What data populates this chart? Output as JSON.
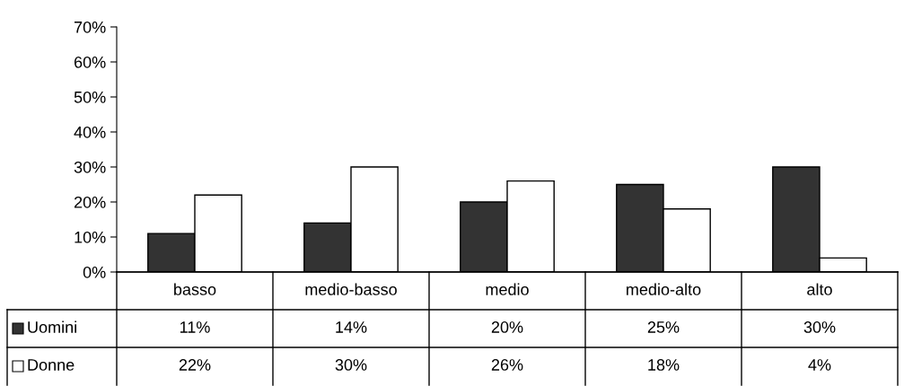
{
  "chart_data": {
    "type": "bar",
    "categories": [
      "basso",
      "medio-basso",
      "medio",
      "medio-alto",
      "alto"
    ],
    "series": [
      {
        "name": "Uomini",
        "color": "#333333",
        "values": [
          11,
          14,
          20,
          25,
          30
        ],
        "value_labels": [
          "11%",
          "14%",
          "20%",
          "25%",
          "30%"
        ]
      },
      {
        "name": "Donne",
        "color": "#ffffff",
        "values": [
          22,
          30,
          26,
          18,
          4
        ],
        "value_labels": [
          "22%",
          "30%",
          "26%",
          "18%",
          "4%"
        ]
      }
    ],
    "ylim": [
      0,
      70
    ],
    "yticks": [
      {
        "value": 0,
        "label": "0%"
      },
      {
        "value": 10,
        "label": "10%"
      },
      {
        "value": 20,
        "label": "20%"
      },
      {
        "value": 30,
        "label": "30%"
      },
      {
        "value": 40,
        "label": "40%"
      },
      {
        "value": 50,
        "label": "50%"
      },
      {
        "value": 60,
        "label": "60%"
      },
      {
        "value": 70,
        "label": "70%"
      }
    ],
    "grid": false,
    "legend": "bottom left"
  }
}
